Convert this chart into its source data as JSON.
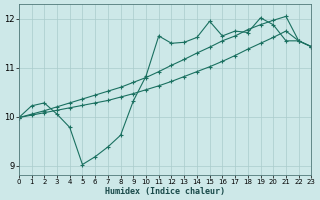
{
  "xlabel": "Humidex (Indice chaleur)",
  "xlim": [
    0,
    23
  ],
  "ylim": [
    8.8,
    12.3
  ],
  "yticks": [
    9,
    10,
    11,
    12
  ],
  "xticks": [
    0,
    1,
    2,
    3,
    4,
    5,
    6,
    7,
    8,
    9,
    10,
    11,
    12,
    13,
    14,
    15,
    16,
    17,
    18,
    19,
    20,
    21,
    22,
    23
  ],
  "background_color": "#cde8e8",
  "grid_color": "#aacccc",
  "line_color": "#1a7060",
  "line1_x": [
    0,
    1,
    2,
    3,
    4,
    5,
    6,
    7,
    8,
    9,
    10,
    11,
    12,
    13,
    14,
    15,
    16,
    17,
    18,
    19,
    20,
    21,
    22,
    23
  ],
  "line1_y": [
    9.98,
    10.22,
    10.28,
    10.05,
    9.78,
    9.02,
    9.18,
    9.38,
    9.62,
    10.32,
    10.83,
    11.65,
    11.5,
    11.52,
    11.62,
    11.95,
    11.65,
    11.75,
    11.72,
    12.02,
    11.88,
    11.55,
    11.55,
    11.43
  ],
  "line2_x": [
    0,
    1,
    2,
    3,
    4,
    5,
    6,
    7,
    8,
    9,
    10,
    11,
    12,
    13,
    14,
    15,
    16,
    17,
    18,
    19,
    20,
    21,
    22,
    23
  ],
  "line2_y": [
    9.98,
    10.05,
    10.12,
    10.2,
    10.28,
    10.36,
    10.44,
    10.52,
    10.6,
    10.7,
    10.8,
    10.92,
    11.05,
    11.17,
    11.3,
    11.42,
    11.55,
    11.65,
    11.78,
    11.88,
    11.97,
    12.05,
    11.55,
    11.43
  ],
  "line3_x": [
    0,
    1,
    2,
    3,
    4,
    5,
    6,
    7,
    8,
    9,
    10,
    11,
    12,
    13,
    14,
    15,
    16,
    17,
    18,
    19,
    20,
    21,
    22,
    23
  ],
  "line3_y": [
    9.98,
    10.03,
    10.08,
    10.13,
    10.18,
    10.23,
    10.28,
    10.33,
    10.4,
    10.47,
    10.55,
    10.63,
    10.72,
    10.82,
    10.92,
    11.02,
    11.13,
    11.25,
    11.38,
    11.5,
    11.62,
    11.75,
    11.55,
    11.43
  ]
}
